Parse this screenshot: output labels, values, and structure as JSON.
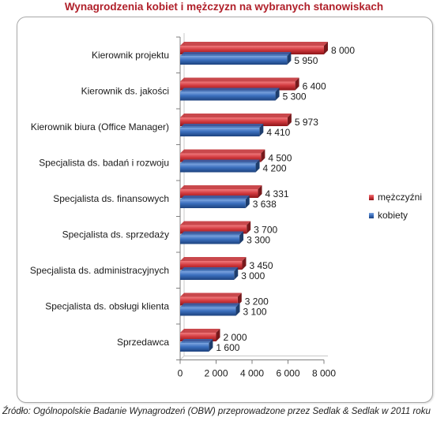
{
  "chart_data": {
    "type": "bar",
    "orientation": "horizontal",
    "title": "Wynagrodzenia kobiet i mężczyzn na wybranych stanowiskach",
    "categories": [
      "Kierownik projektu",
      "Kierownik ds. jakości",
      "Kierownik biura (Office Manager)",
      "Specjalista ds. badań i rozwoju",
      "Specjalista ds. finansowych",
      "Specjalista ds. sprzedaży",
      "Specjalista ds. administracyjnych",
      "Specjalista ds. obsługi klienta",
      "Sprzedawca"
    ],
    "series": [
      {
        "name": "mężczyźni",
        "color": "#c0282d",
        "values": [
          8000,
          6400,
          5973,
          4500,
          4331,
          3700,
          3450,
          3200,
          2000
        ],
        "labels": [
          "8 000",
          "6 400",
          "5 973",
          "4 500",
          "4 331",
          "3 700",
          "3 450",
          "3 200",
          "2 000"
        ]
      },
      {
        "name": "kobiety",
        "color": "#2f63b0",
        "values": [
          5950,
          5300,
          4410,
          4200,
          3638,
          3300,
          3000,
          3100,
          1600
        ],
        "labels": [
          "5 950",
          "5 300",
          "4 410",
          "4 200",
          "3 638",
          "3 300",
          "3 000",
          "3 100",
          "1 600"
        ]
      }
    ],
    "xlim": [
      0,
      8000
    ],
    "xticks": [
      0,
      2000,
      4000,
      6000,
      8000
    ],
    "xtick_labels": [
      "0",
      "2 000",
      "4 000",
      "6 000",
      "8 000"
    ],
    "legend_position": "right",
    "grid": false
  },
  "source": "Źródło: Ogólnopolskie Badanie Wynagrodzeń (OBW) przeprowadzone przez Sedlak & Sedlak w 2011 roku"
}
